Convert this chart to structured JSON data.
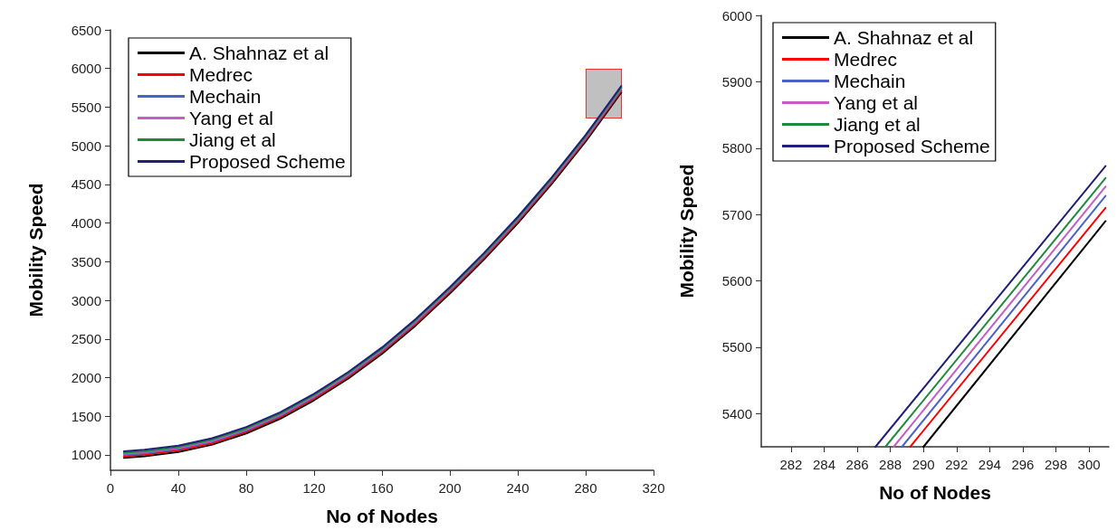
{
  "chart_data": [
    {
      "type": "line",
      "xlabel": "No of Nodes",
      "ylabel": "Mobility Speed",
      "x": [
        8,
        20,
        40,
        60,
        80,
        100,
        120,
        140,
        160,
        180,
        200,
        220,
        240,
        260,
        280,
        290,
        301
      ],
      "xlim": [
        0,
        320
      ],
      "xticks": [
        0,
        40,
        80,
        120,
        160,
        200,
        240,
        280,
        320
      ],
      "ylim": [
        800,
        6500
      ],
      "yticks": [
        1000,
        1500,
        2000,
        2500,
        3000,
        3500,
        4000,
        4500,
        5000,
        5500,
        6000,
        6500
      ],
      "legend": "top left",
      "marker": "none",
      "line_style": "solid",
      "grid": false,
      "series": [
        {
          "name": "A. Shahnaz et al",
          "color": "#000000",
          "values": [
            962,
            982,
            1037,
            1132,
            1277,
            1467,
            1707,
            1987,
            2307,
            2677,
            3087,
            3527,
            3997,
            4507,
            5057,
            5357,
            5690
          ]
        },
        {
          "name": "Medrec",
          "color": "#ff0000",
          "values": [
            982,
            1002,
            1057,
            1152,
            1297,
            1487,
            1727,
            2007,
            2327,
            2697,
            3107,
            3547,
            4017,
            4527,
            5077,
            5377,
            5710
          ]
        },
        {
          "name": "Mechain",
          "color": "#4a63c4",
          "values": [
            1000,
            1020,
            1075,
            1170,
            1315,
            1505,
            1745,
            2025,
            2345,
            2715,
            3125,
            3565,
            4035,
            4545,
            5095,
            5395,
            5728
          ]
        },
        {
          "name": "Yang et al",
          "color": "#c45ec4",
          "values": [
            1014,
            1034,
            1089,
            1184,
            1329,
            1519,
            1759,
            2039,
            2359,
            2729,
            3139,
            3579,
            4049,
            4559,
            5109,
            5409,
            5742
          ]
        },
        {
          "name": "Jiang et al",
          "color": "#1e8a3a",
          "values": [
            1027,
            1047,
            1102,
            1197,
            1342,
            1532,
            1772,
            2052,
            2372,
            2742,
            3152,
            3592,
            4062,
            4572,
            5122,
            5422,
            5755
          ]
        },
        {
          "name": "Proposed Scheme",
          "color": "#20207a",
          "values": [
            1045,
            1065,
            1120,
            1215,
            1360,
            1550,
            1790,
            2070,
            2390,
            2760,
            3170,
            3610,
            4080,
            4590,
            5140,
            5440,
            5773
          ]
        }
      ]
    },
    {
      "type": "line",
      "xlabel": "No of Nodes",
      "ylabel": "Mobility Speed",
      "xlim": [
        280.2,
        301.2
      ],
      "xticks": [
        282,
        284,
        286,
        288,
        290,
        292,
        294,
        296,
        298,
        300
      ],
      "ylim": [
        5350,
        6000
      ],
      "yticks": [
        5400,
        5500,
        5600,
        5700,
        5800,
        5900,
        6000
      ],
      "legend": "top left",
      "marker": "none",
      "line_style": "solid",
      "grid": false,
      "series": [
        {
          "name": "A. Shahnaz et al",
          "color": "#000000",
          "x": [
            290.0,
            301
          ],
          "values": [
            5350,
            5690
          ]
        },
        {
          "name": "Medrec",
          "color": "#ff0000",
          "x": [
            289.2,
            301
          ],
          "values": [
            5350,
            5710
          ]
        },
        {
          "name": "Mechain",
          "color": "#4a63c4",
          "x": [
            288.7,
            301
          ],
          "values": [
            5350,
            5728
          ]
        },
        {
          "name": "Yang et al",
          "color": "#c45ec4",
          "x": [
            288.2,
            301
          ],
          "values": [
            5350,
            5742
          ]
        },
        {
          "name": "Jiang et al",
          "color": "#1e8a3a",
          "x": [
            287.7,
            301
          ],
          "values": [
            5350,
            5755
          ]
        },
        {
          "name": "Proposed Scheme",
          "color": "#20207a",
          "x": [
            287.1,
            301
          ],
          "values": [
            5350,
            5773
          ]
        }
      ]
    }
  ]
}
